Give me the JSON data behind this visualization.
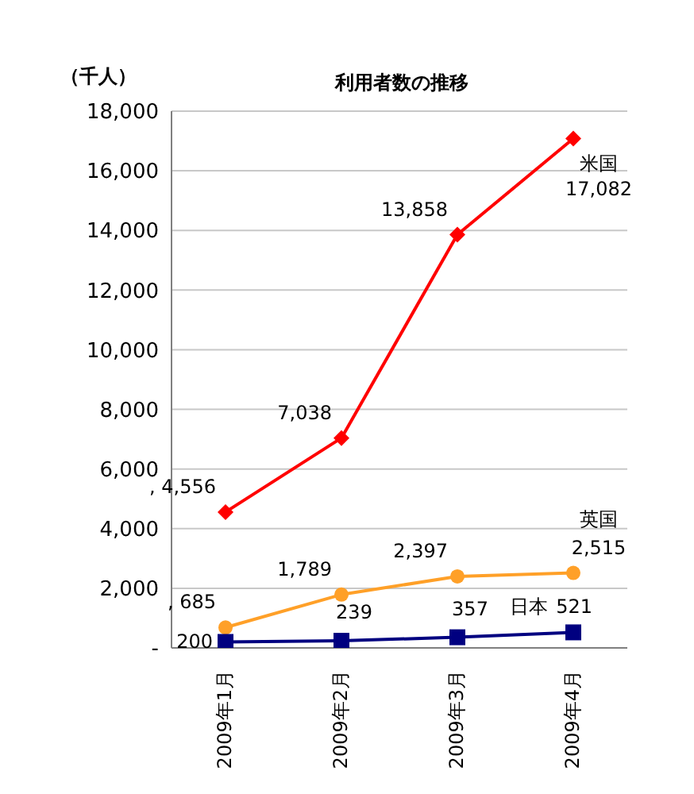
{
  "chart_data": {
    "type": "line",
    "title": "利用者数の推移",
    "ylabel": "（千人）",
    "categories": [
      "2009年1月",
      "2009年2月",
      "2009年3月",
      "2009年4月"
    ],
    "series": [
      {
        "name": "米国",
        "color": "#ff0000",
        "marker": "diamond",
        "values": [
          4556,
          7038,
          13858,
          17082
        ],
        "value_labels": [
          ", 4,556",
          "7,038",
          "13,858",
          "17,082"
        ]
      },
      {
        "name": "英国",
        "color": "#ffa028",
        "marker": "circle",
        "values": [
          685,
          1789,
          2397,
          2515
        ],
        "value_labels": [
          ", 685",
          "1,789",
          "2,397",
          "2,515"
        ]
      },
      {
        "name": "日本",
        "color": "#000080",
        "marker": "square",
        "values": [
          200,
          239,
          357,
          521
        ],
        "value_labels": [
          "200",
          "239",
          "357",
          "521"
        ]
      }
    ],
    "ylim": [
      0,
      18000
    ],
    "yticks": [
      {
        "value": 0,
        "label": "-"
      },
      {
        "value": 2000,
        "label": "2,000"
      },
      {
        "value": 4000,
        "label": "4,000"
      },
      {
        "value": 6000,
        "label": "6,000"
      },
      {
        "value": 8000,
        "label": "8,000"
      },
      {
        "value": 10000,
        "label": "10,000"
      },
      {
        "value": 12000,
        "label": "12,000"
      },
      {
        "value": 14000,
        "label": "14,000"
      },
      {
        "value": 16000,
        "label": "16,000"
      },
      {
        "value": 18000,
        "label": "18,000"
      }
    ],
    "grid": "y",
    "legend": false
  }
}
